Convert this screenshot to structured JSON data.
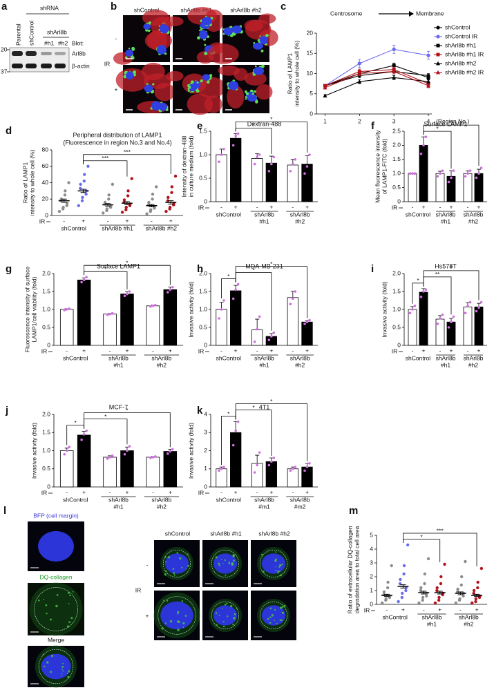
{
  "figure": {
    "blot": {
      "panel": "a",
      "shrna": "shRNA",
      "lanes": [
        "Parental",
        "shControl"
      ],
      "sub_group": "shArl8b",
      "sub_lanes": [
        "#h1",
        "#h2"
      ],
      "blot_label": "Blot:",
      "bands": [
        "Arl8b",
        "β-actin"
      ],
      "markers": [
        20,
        37
      ]
    },
    "microscopy_b": {
      "panel": "b",
      "columns": [
        "shControl",
        "shArl8b #h1",
        "shArl8b #h2"
      ],
      "rows": [
        "-",
        "+"
      ],
      "row_label": "IR"
    },
    "microscopy_l": {
      "panel": "l",
      "channels": [
        "BFP (cell margin)",
        "DQ-collagen",
        "Merge"
      ],
      "columns": [
        "shControl",
        "shArl8b #h1",
        "shArl8b #h2"
      ],
      "rows": [
        "-",
        "+"
      ],
      "row_label": "IR"
    }
  },
  "chart_data": [
    {
      "type": "line",
      "panel": "c",
      "header": [
        "Centrosome",
        "Membrane"
      ],
      "ylabel": [
        "Ratio of LAMP1",
        "intensity to whole cell (%)"
      ],
      "xlabel": "(Region No.)",
      "x": [
        1,
        2,
        3,
        4
      ],
      "xlim": [
        0.75,
        4.1
      ],
      "xticks": [
        1,
        2,
        3,
        4
      ],
      "ylim": [
        0,
        20
      ],
      "yticks": [
        0,
        5,
        10,
        15,
        20
      ],
      "legend": "right",
      "series": [
        {
          "name": "shControl",
          "color": "#000000",
          "marker": "circle",
          "values": [
            7,
            9.5,
            10.5,
            9.5
          ],
          "errors": [
            0.3,
            0.5,
            0.6,
            0.5
          ]
        },
        {
          "name": "shControl IR",
          "color": "#6b6bf0",
          "marker": "circle",
          "values": [
            7,
            12.5,
            16,
            14.5
          ],
          "errors": [
            0.3,
            1,
            1,
            1
          ]
        },
        {
          "name": "shArl8b #h1",
          "color": "#000000",
          "marker": "square",
          "values": [
            7,
            10,
            12,
            9
          ],
          "errors": [
            0.3,
            0.6,
            0.6,
            0.6
          ]
        },
        {
          "name": "shArl8b #h1 IR",
          "color": "#b3121b",
          "marker": "square",
          "values": [
            7,
            10.5,
            11,
            7.5
          ],
          "errors": [
            0.3,
            0.6,
            0.6,
            0.5
          ]
        },
        {
          "name": "shArl8b #h2",
          "color": "#000000",
          "marker": "triangle",
          "values": [
            4.5,
            8,
            9,
            8
          ],
          "errors": [
            0.3,
            0.5,
            0.5,
            0.5
          ]
        },
        {
          "name": "shArl8b #h2 IR",
          "color": "#b3121b",
          "marker": "triangle",
          "values": [
            6.5,
            10,
            10.5,
            7
          ],
          "errors": [
            0.3,
            0.5,
            0.6,
            0.5
          ]
        }
      ]
    },
    {
      "type": "dot",
      "panel": "d",
      "title": [
        "Peripheral distribution of LAMP1",
        "(Fluorescence in region No.3 and No.4)"
      ],
      "ylabel": [
        "Ratio of LAMP1",
        "intensity to whole cell (%)"
      ],
      "ylim": [
        0,
        80
      ],
      "yticks": [
        0,
        20,
        40,
        60,
        80
      ],
      "treatment_label": "IR",
      "treatments": [
        "-",
        "+"
      ],
      "groups": [
        [
          "shControl"
        ],
        [
          "shArl8b #h1"
        ],
        [
          "shArl8b #h2"
        ]
      ],
      "colors": [
        "#8c8c8c",
        "#6b6bf0",
        "#8c8c8c",
        "#b3121b",
        "#8c8c8c",
        "#b3121b"
      ],
      "means": [
        18,
        30,
        13,
        15,
        12,
        16
      ],
      "errors": [
        2,
        2,
        1.5,
        1.8,
        1.5,
        2
      ],
      "points": [
        [
          5,
          8,
          10,
          12,
          15,
          18,
          20,
          25,
          30,
          40
        ],
        [
          12,
          18,
          22,
          26,
          30,
          33,
          38,
          42,
          50,
          60
        ],
        [
          3,
          6,
          8,
          10,
          12,
          14,
          16,
          20,
          25,
          38
        ],
        [
          4,
          7,
          10,
          12,
          14,
          16,
          19,
          24,
          30,
          45
        ],
        [
          2,
          5,
          7,
          9,
          11,
          13,
          16,
          20,
          26,
          35
        ],
        [
          5,
          8,
          10,
          13,
          15,
          18,
          22,
          28,
          35,
          48
        ]
      ],
      "brackets": [
        {
          "between": [
            1,
            3
          ],
          "label": "***"
        },
        {
          "between": [
            1,
            5
          ],
          "label": "***"
        }
      ]
    },
    {
      "type": "bar",
      "panel": "e",
      "title": "Dextran-488",
      "ylabel": [
        "Intensity of dextran-488",
        "in culture medium (fold)"
      ],
      "ylim": [
        0,
        1.5
      ],
      "yticks": [
        0,
        0.5,
        {
          "value": 1,
          "label": "1.0"
        },
        1.5
      ],
      "treatment_label": "IR",
      "treatments": [
        "-",
        "+"
      ],
      "groups": [
        [
          "shControl"
        ],
        [
          "shArl8b",
          "#h1"
        ],
        [
          "shArl8b",
          "#h2"
        ]
      ],
      "colors": [
        "#ffffff",
        "#000000"
      ],
      "point_color": "#d070e0",
      "values": [
        1.0,
        1.35,
        0.92,
        0.82,
        0.78,
        0.8
      ],
      "errors": [
        0.12,
        0.1,
        0.1,
        0.15,
        0.12,
        0.18
      ],
      "points": [
        [
          0.85,
          1.0,
          1.12
        ],
        [
          1.2,
          1.4,
          1.45
        ],
        [
          0.8,
          0.95,
          1.0
        ],
        [
          0.65,
          0.8,
          0.95
        ],
        [
          0.65,
          0.8,
          0.9
        ],
        [
          0.6,
          0.75,
          1.0
        ]
      ],
      "brackets": [
        {
          "between": [
            1,
            3
          ],
          "label": "*"
        },
        {
          "between": [
            1,
            5
          ],
          "label": "*"
        }
      ]
    },
    {
      "type": "bar",
      "panel": "f",
      "title": "Surface LAMP1",
      "ylabel": [
        "Mean fluorescence intensity",
        "of LAMP1-FITC (fold)"
      ],
      "ylim": [
        0,
        2.5
      ],
      "yticks": [
        0,
        0.5,
        {
          "value": 1,
          "label": "1.0"
        },
        1.5,
        {
          "value": 2,
          "label": "2.0"
        },
        2.5
      ],
      "treatment_label": "IR",
      "treatments": [
        "-",
        "+"
      ],
      "groups": [
        [
          "shControl"
        ],
        [
          "shArl8b",
          "#h1"
        ],
        [
          "shArl8b",
          "#h2"
        ]
      ],
      "colors": [
        "#ffffff",
        "#000000"
      ],
      "point_color": "#d070e0",
      "values": [
        1.0,
        2.0,
        1.0,
        0.9,
        1.0,
        1.0
      ],
      "errors": [
        0.02,
        0.3,
        0.08,
        0.2,
        0.1,
        0.15
      ],
      "points": [
        [
          1.0,
          1.0,
          1.0
        ],
        [
          1.7,
          2.0,
          2.3
        ],
        [
          0.9,
          1.0,
          1.1
        ],
        [
          0.7,
          0.85,
          1.1
        ],
        [
          0.9,
          1.0,
          1.1
        ],
        [
          0.85,
          1.0,
          1.2
        ]
      ],
      "brackets": [
        {
          "between": [
            1,
            3
          ],
          "label": "*"
        },
        {
          "between": [
            1,
            5
          ],
          "label": "*"
        }
      ]
    },
    {
      "type": "bar",
      "panel": "g",
      "title": "Surface LAMP1",
      "ylabel": [
        "Fluorescence intensity of surface",
        "LAMP1/cell viability (fold)"
      ],
      "ylim": [
        0,
        2
      ],
      "yticks": [
        0,
        0.5,
        {
          "value": 1,
          "label": "1.0"
        },
        1.5,
        {
          "value": 2,
          "label": "2.0"
        }
      ],
      "treatment_label": "IR",
      "treatments": [
        "-",
        "+"
      ],
      "groups": [
        [
          "shControl"
        ],
        [
          "shArl8b",
          "#h1"
        ],
        [
          "shArl8b",
          "#h2"
        ]
      ],
      "colors": [
        "#ffffff",
        "#000000"
      ],
      "point_color": "#d070e0",
      "values": [
        1.0,
        1.82,
        0.87,
        1.43,
        1.1,
        1.55
      ],
      "errors": [
        0.02,
        0.06,
        0.02,
        0.06,
        0.02,
        0.07
      ],
      "points": [
        [
          0.98,
          1.0,
          1.02
        ],
        [
          1.76,
          1.82,
          1.9
        ],
        [
          0.85,
          0.87,
          0.89
        ],
        [
          1.38,
          1.43,
          1.5
        ],
        [
          1.08,
          1.1,
          1.12
        ],
        [
          1.48,
          1.55,
          1.62
        ]
      ],
      "brackets": [
        {
          "between": [
            1,
            3
          ],
          "label": "*"
        },
        {
          "between": [
            1,
            5
          ],
          "label": "*"
        }
      ]
    },
    {
      "type": "bar",
      "panel": "h",
      "title": "MDA-MB-231",
      "ylabel": [
        "Invasive activity (fold)"
      ],
      "ylim": [
        0,
        2
      ],
      "yticks": [
        0,
        0.5,
        {
          "value": 1,
          "label": "1.0"
        },
        1.5,
        {
          "value": 2,
          "label": "2.0"
        }
      ],
      "treatment_label": "IR",
      "treatments": [
        "-",
        "+"
      ],
      "groups": [
        [
          "shControl"
        ],
        [
          "shArl8b",
          "#h1"
        ],
        [
          "shArl8b",
          "#h2"
        ]
      ],
      "colors": [
        "#ffffff",
        "#000000"
      ],
      "point_color": "#d070e0",
      "values": [
        1.0,
        1.52,
        0.43,
        0.25,
        1.33,
        0.65
      ],
      "errors": [
        0.2,
        0.15,
        0.3,
        0.08,
        0.18,
        0.04
      ],
      "points": [
        [
          0.75,
          1.0,
          1.25
        ],
        [
          1.3,
          1.55,
          1.7
        ],
        [
          0.1,
          0.45,
          0.8
        ],
        [
          0.15,
          0.25,
          0.35
        ],
        [
          1.15,
          1.3,
          1.5
        ],
        [
          0.6,
          0.65,
          0.7
        ]
      ],
      "brackets": [
        {
          "between": [
            0,
            1
          ],
          "label": "*"
        },
        {
          "between": [
            1,
            3
          ],
          "label": "*"
        },
        {
          "between": [
            1,
            5
          ],
          "label": "*"
        }
      ]
    },
    {
      "type": "bar",
      "panel": "i",
      "title": "Hs578T",
      "ylabel": [
        "Invasive activity (fold)"
      ],
      "ylim": [
        0,
        2
      ],
      "yticks": [
        0,
        0.5,
        {
          "value": 1,
          "label": "1.0"
        },
        1.5,
        {
          "value": 2,
          "label": "2.0"
        }
      ],
      "treatment_label": "IR",
      "treatments": [
        "-",
        "+"
      ],
      "groups": [
        [
          "shControl"
        ],
        [
          "shArl8b",
          "#h1"
        ],
        [
          "shArl8b",
          "#h2"
        ]
      ],
      "colors": [
        "#ffffff",
        "#000000"
      ],
      "point_color": "#d070e0",
      "values": [
        1.0,
        1.48,
        0.73,
        0.65,
        1.07,
        1.07
      ],
      "errors": [
        0.08,
        0.1,
        0.1,
        0.1,
        0.12,
        0.1
      ],
      "points": [
        [
          0.9,
          1.0,
          1.1
        ],
        [
          1.35,
          1.5,
          1.55
        ],
        [
          0.6,
          0.75,
          0.85
        ],
        [
          0.5,
          0.65,
          0.8
        ],
        [
          0.9,
          1.1,
          1.2
        ],
        [
          0.95,
          1.05,
          1.2
        ]
      ],
      "brackets": [
        {
          "between": [
            0,
            1
          ],
          "label": "*"
        },
        {
          "between": [
            1,
            3
          ],
          "label": "**"
        },
        {
          "between": [
            1,
            5
          ],
          "label": "*"
        }
      ]
    },
    {
      "type": "bar",
      "panel": "j",
      "title": "MCF-7",
      "ylabel": [
        "Invasive activity (fold)"
      ],
      "ylim": [
        0,
        2
      ],
      "yticks": [
        0,
        0.5,
        {
          "value": 1,
          "label": "1.0"
        },
        1.5,
        {
          "value": 2,
          "label": "2.0"
        }
      ],
      "treatment_label": "IR",
      "treatments": [
        "-",
        "+"
      ],
      "groups": [
        [
          "shControl"
        ],
        [
          "shArl8b",
          "#h1"
        ],
        [
          "shArl8b",
          "#h2"
        ]
      ],
      "colors": [
        "#ffffff",
        "#000000"
      ],
      "point_color": "#d070e0",
      "values": [
        1.0,
        1.43,
        0.82,
        1.0,
        0.82,
        0.98
      ],
      "errors": [
        0.07,
        0.1,
        0.04,
        0.1,
        0.02,
        0.06
      ],
      "points": [
        [
          0.9,
          1.0,
          1.1
        ],
        [
          1.3,
          1.45,
          1.55
        ],
        [
          0.78,
          0.82,
          0.86
        ],
        [
          0.9,
          1.0,
          1.12
        ],
        [
          0.8,
          0.82,
          0.84
        ],
        [
          0.92,
          0.98,
          1.04
        ]
      ],
      "brackets": [
        {
          "between": [
            0,
            1
          ],
          "label": "*"
        },
        {
          "between": [
            1,
            3
          ],
          "label": "*"
        },
        {
          "between": [
            1,
            5
          ],
          "label": "*"
        }
      ]
    },
    {
      "type": "bar",
      "panel": "k",
      "title": "4T1",
      "ylabel": [
        "Invasive activity (fold)"
      ],
      "ylim": [
        0,
        4
      ],
      "yticks": [
        0,
        1,
        2,
        3,
        4
      ],
      "treatment_label": "IR",
      "treatments": [
        "-",
        "+"
      ],
      "groups": [
        [
          "shControl"
        ],
        [
          "shArl8b",
          "#m1"
        ],
        [
          "shArl8b",
          "#m2"
        ]
      ],
      "colors": [
        "#ffffff",
        "#000000"
      ],
      "point_color": "#d070e0",
      "values": [
        1.0,
        3.0,
        1.3,
        1.4,
        1.0,
        1.1
      ],
      "errors": [
        0.1,
        0.6,
        0.45,
        0.2,
        0.1,
        0.2
      ],
      "points": [
        [
          0.9,
          1.0,
          1.1
        ],
        [
          2.3,
          3.1,
          3.6
        ],
        [
          0.8,
          1.2,
          1.9
        ],
        [
          1.2,
          1.4,
          1.6
        ],
        [
          0.9,
          1.0,
          1.1
        ],
        [
          0.9,
          1.1,
          1.3
        ]
      ],
      "brackets": [
        {
          "between": [
            0,
            1
          ],
          "label": "*"
        },
        {
          "between": [
            1,
            3
          ],
          "label": "*"
        },
        {
          "between": [
            1,
            5
          ],
          "label": "*"
        }
      ]
    },
    {
      "type": "dot",
      "panel": "m",
      "ylabel": [
        "Ratio of extracellular DQ-collagen",
        "degradation area to total cell area"
      ],
      "ylim": [
        0,
        5
      ],
      "yticks": [
        0,
        1,
        2,
        3,
        4,
        5
      ],
      "treatment_label": "IR",
      "treatments": [
        "-",
        "+"
      ],
      "groups": [
        [
          "shControl"
        ],
        [
          "shArl8b",
          "#h1"
        ],
        [
          "shArl8b",
          "#h2"
        ]
      ],
      "colors": [
        "#8c8c8c",
        "#6b6bf0",
        "#8c8c8c",
        "#b3121b",
        "#8c8c8c",
        "#b3121b"
      ],
      "means": [
        0.65,
        1.3,
        0.85,
        0.85,
        0.8,
        0.65
      ],
      "errors": [
        0.08,
        0.12,
        0.1,
        0.1,
        0.1,
        0.08
      ],
      "points": [
        [
          0.1,
          0.3,
          0.4,
          0.5,
          0.6,
          0.7,
          0.9,
          1.2,
          1.6,
          2.8
        ],
        [
          0.2,
          0.5,
          0.8,
          1.0,
          1.2,
          1.5,
          1.8,
          2.2,
          2.8,
          4.3
        ],
        [
          0.1,
          0.3,
          0.5,
          0.6,
          0.8,
          1.0,
          1.2,
          1.5,
          2.2,
          3.3
        ],
        [
          0.1,
          0.3,
          0.5,
          0.7,
          0.8,
          1.0,
          1.2,
          1.5,
          2.0,
          2.9
        ],
        [
          0.1,
          0.3,
          0.4,
          0.6,
          0.8,
          0.9,
          1.1,
          1.4,
          2.0,
          3.1
        ],
        [
          0.1,
          0.2,
          0.4,
          0.5,
          0.6,
          0.8,
          1.0,
          1.2,
          1.6,
          2.6
        ]
      ],
      "brackets": [
        {
          "between": [
            1,
            3
          ],
          "label": "*"
        },
        {
          "between": [
            1,
            5
          ],
          "label": "***"
        }
      ]
    }
  ]
}
